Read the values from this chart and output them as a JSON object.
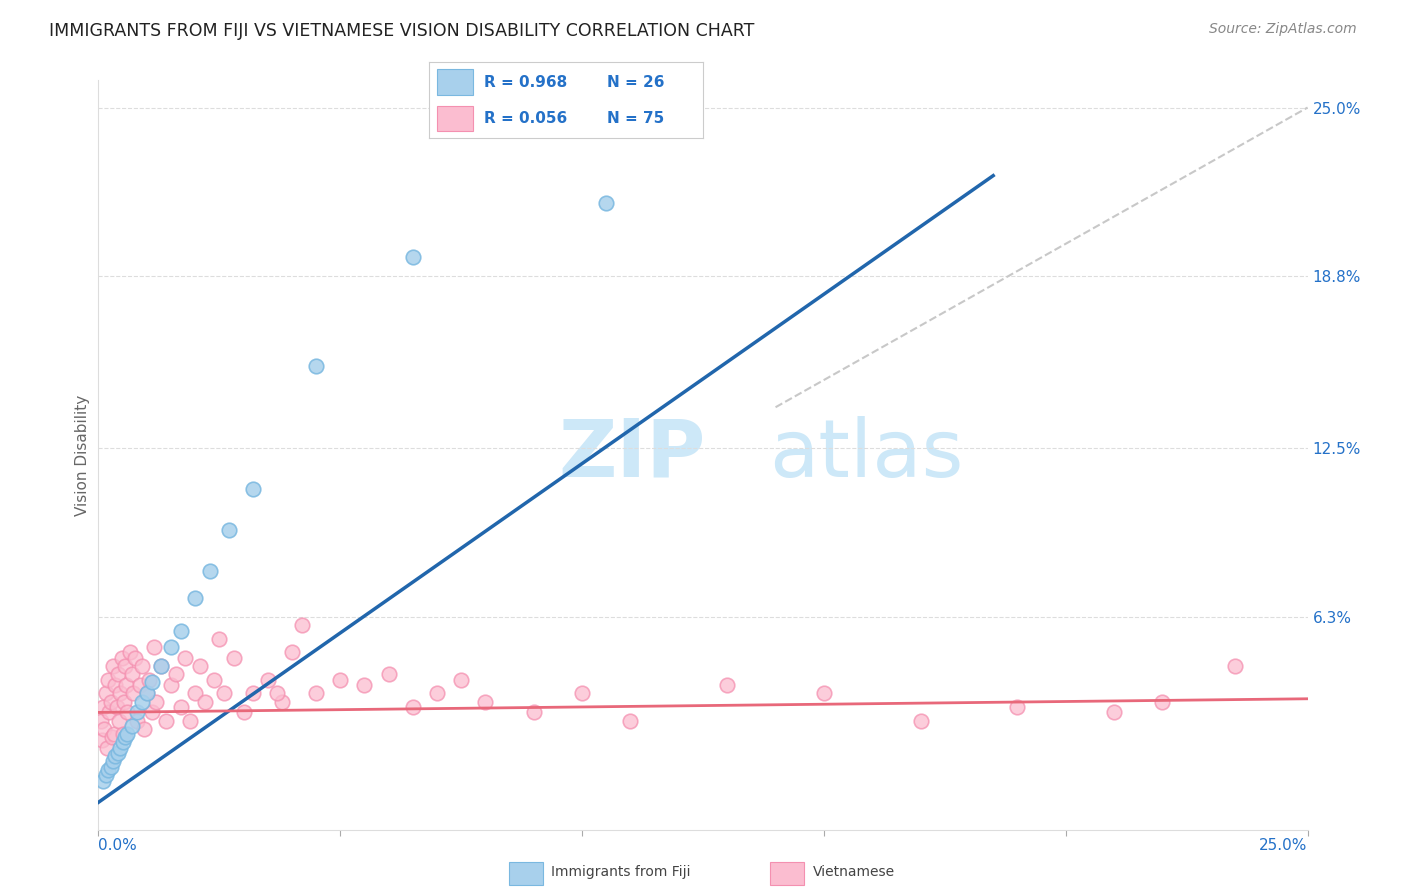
{
  "title": "IMMIGRANTS FROM FIJI VS VIETNAMESE VISION DISABILITY CORRELATION CHART",
  "source": "Source: ZipAtlas.com",
  "ylabel": "Vision Disability",
  "ytick_labels": [
    "6.3%",
    "12.5%",
    "18.8%",
    "25.0%"
  ],
  "ytick_values": [
    6.3,
    12.5,
    18.8,
    25.0
  ],
  "xlim": [
    0.0,
    25.0
  ],
  "ylim": [
    -1.5,
    26.0
  ],
  "legend_fiji_r": "R = 0.968",
  "legend_fiji_n": "N = 26",
  "legend_viet_r": "R = 0.056",
  "legend_viet_n": "N = 75",
  "fiji_fill_color": "#a8d0ec",
  "fiji_edge_color": "#7ab8e0",
  "vietnamese_fill_color": "#fbbdd0",
  "vietnamese_edge_color": "#f490b0",
  "fiji_line_color": "#2166ac",
  "vietnamese_line_color": "#e8687a",
  "diagonal_color": "#c8c8c8",
  "title_fontsize": 12.5,
  "axis_label_fontsize": 11,
  "tick_fontsize": 11,
  "source_fontsize": 10,
  "fiji_line_x0": 0.0,
  "fiji_line_y0": -0.5,
  "fiji_line_x1": 18.5,
  "fiji_line_y1": 22.5,
  "viet_line_x0": 0.0,
  "viet_line_y0": 2.8,
  "viet_line_x1": 25.0,
  "viet_line_y1": 3.3,
  "diag_x0": 14.0,
  "diag_y0": 14.0,
  "diag_x1": 25.0,
  "diag_y1": 25.0
}
